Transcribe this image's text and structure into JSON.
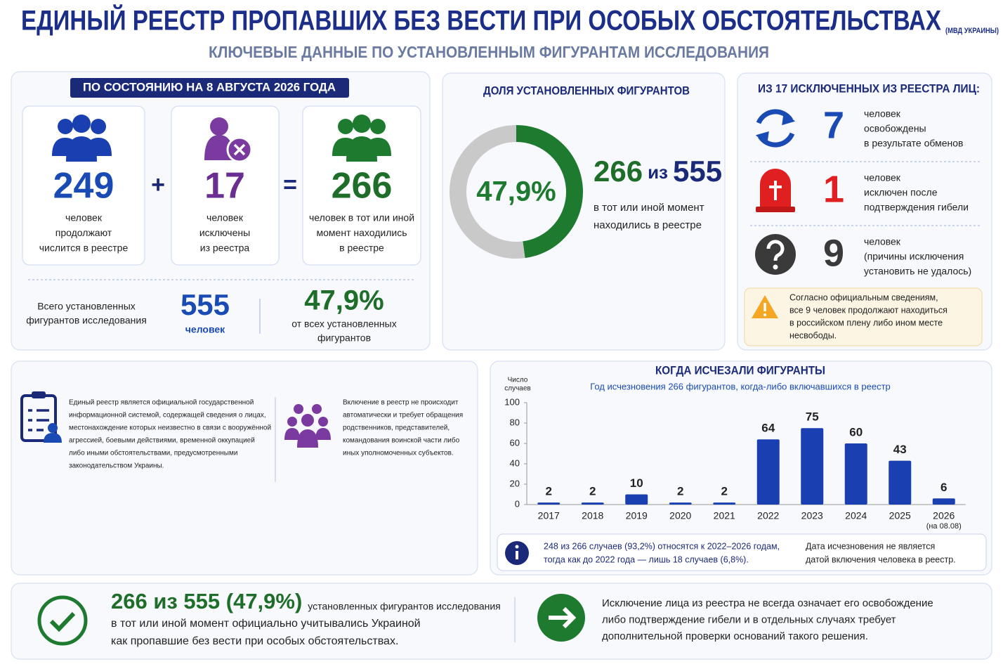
{
  "header": {
    "title": "ЕДИНЫЙ РЕЕСТР ПРОПАВШИХ БЕЗ ВЕСТИ ПРИ ОСОБЫХ ОБСТОЯТЕЛЬСТВАХ",
    "source": "(МВД УКРАИНЫ)",
    "subtitle": "КЛЮЧЕВЫЕ ДАННЫЕ ПО УСТАНОВЛЕННЫМ ФИГУРАНТАМ ИССЛЕДОВАНИЯ"
  },
  "status": {
    "title": "ПО СОСТОЯНИЮ НА 8 АВГУСТА 2026 ГОДА",
    "cards": [
      {
        "value": "249",
        "lines": [
          "человек",
          "продолжают",
          "числится в реестре"
        ]
      },
      {
        "value": "17",
        "lines": [
          "человек",
          "исключены",
          "из реестра"
        ]
      },
      {
        "value": "266",
        "lines": [
          "человек в тот или иной",
          "момент находились",
          "в реестре"
        ]
      }
    ],
    "plus": "+",
    "equals": "=",
    "total": {
      "lines": [
        "Всего установленных",
        "фигурантов исследования"
      ],
      "value": "555",
      "unit": "человек"
    },
    "share": {
      "value": "47,9%",
      "lines": [
        "от всех установленных",
        "фигурантов"
      ]
    }
  },
  "excluded": {
    "title": "ИЗ 17 ИСКЛЮЧЕННЫХ ИЗ РЕЕСТРА ЛИЦ:",
    "rows": [
      {
        "value": "7",
        "lines": [
          "человек",
          "освобождены",
          "в результате обменов"
        ]
      },
      {
        "value": "1",
        "lines": [
          "человек",
          "исключен после",
          "подтверждения гибели"
        ]
      },
      {
        "value": "9",
        "lines": [
          "человек",
          "(причины исключения",
          "установить не удалось)"
        ]
      }
    ],
    "warning": [
      "Согласно официальным сведениям,",
      "все 9 человек продолжают находиться",
      "в российском плену либо ином месте",
      "несвободы."
    ]
  },
  "about": {
    "left": [
      "Единый реестр является официальной государственной",
      "информационной системой, содержащей сведения о лицах,",
      "местонахождение которых неизвестно в связи с вооружённой",
      "агрессией, боевыми действиями, временной оккупацией",
      "либо иными обстоятельствами, предусмотренными",
      "законодательством Украины."
    ],
    "right": [
      "Включение в реестр не происходит",
      "автоматически и требует обращения",
      "родственников, представителей,",
      "командования воинской части либо",
      "иных уполномоченных субъектов."
    ]
  },
  "footer": {
    "headline": "266 из 555 (47,9%)",
    "headline_tail": "установленных фигурантов исследования",
    "lines": [
      "в тот или иной момент официально учитывались Украиной",
      "как пропавшие без вести при особых обстоятельствах."
    ],
    "right": [
      "Исключение лица из реестра не всегда означает его освобождение",
      "либо подтверждение гибели и в отдельных случаях требует",
      "дополнительной проверки оснований такого решения."
    ]
  },
  "chart_data": [
    {
      "type": "donut",
      "title": "ДОЛЯ УСТАНОВЛЕННЫХ ФИГУРАНТОВ",
      "values": [
        47.9,
        52.1
      ],
      "value_labels": [
        "47,9%",
        null
      ],
      "colors": [
        "#1e7a2e",
        "#c9c9c9"
      ],
      "annotation": {
        "count": "266",
        "joiner": "из",
        "total": "555",
        "lines": [
          "в тот или иной момент",
          "находились в реестре"
        ]
      }
    },
    {
      "type": "bar",
      "title": "КОГДА ИСЧЕЗАЛИ ФИГУРАНТЫ",
      "subtitle": "Год исчезновения 266 фигурантов, когда-либо включавшихся в реестр",
      "ylabel": [
        "Число",
        "случаев"
      ],
      "categories": [
        "2017",
        "2018",
        "2019",
        "2020",
        "2021",
        "2022",
        "2023",
        "2024",
        "2025",
        "2026"
      ],
      "xnote": "(на 08.08)",
      "values": [
        2,
        2,
        10,
        2,
        2,
        64,
        75,
        60,
        43,
        6
      ],
      "color": "#1a3fb0",
      "ylim": [
        0,
        100
      ],
      "yticks": [
        0,
        20,
        40,
        60,
        80,
        100
      ],
      "grid": false,
      "notes": [
        [
          "248 из 266 случаев (93,2%) относятся к 2022–2026 годам,",
          "тогда как до 2022 года — лишь 18 случаев (6,8%)."
        ],
        [
          "Дата исчезновения не является",
          "датой включения человека в реестр."
        ]
      ]
    }
  ]
}
